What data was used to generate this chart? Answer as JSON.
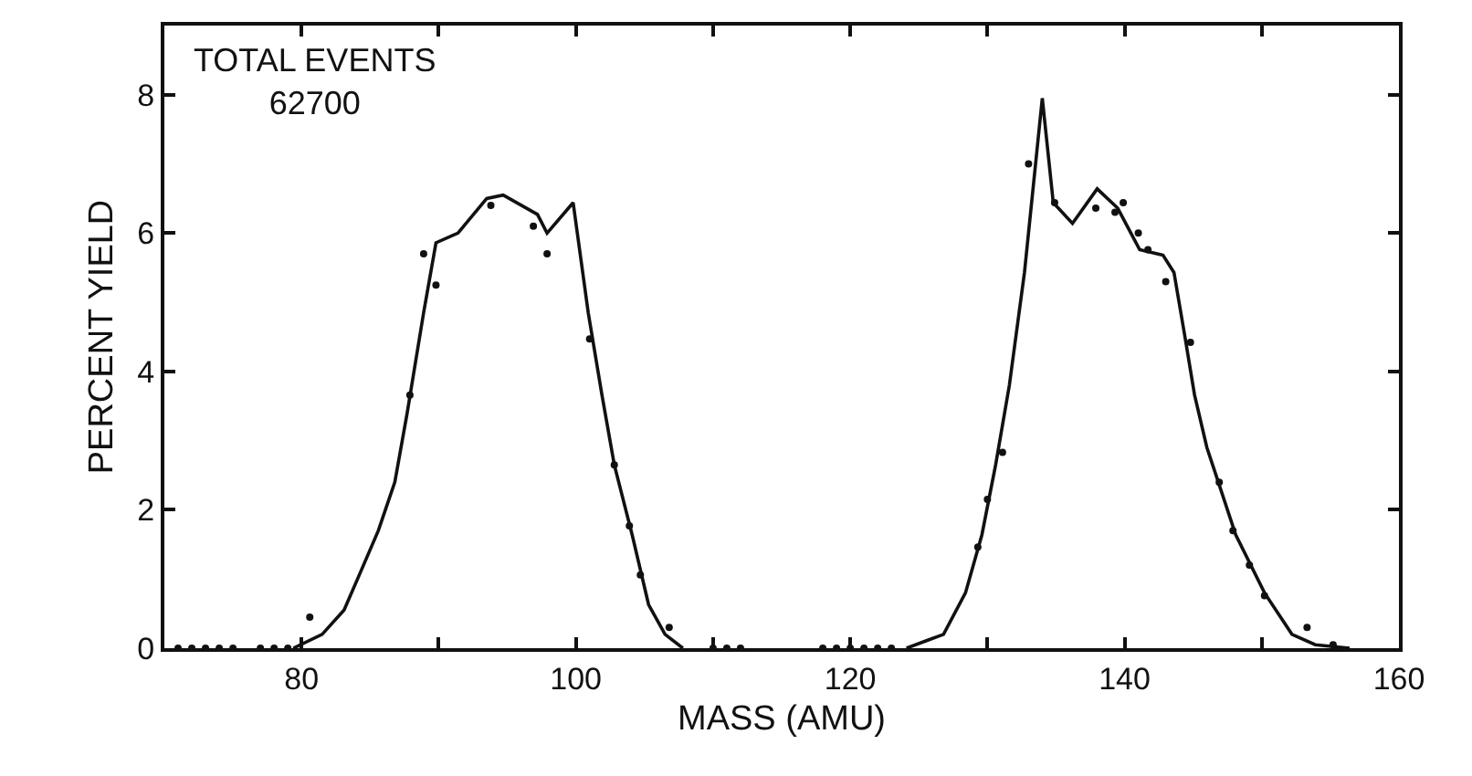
{
  "chart_data": {
    "type": "line",
    "xlabel": "MASS (AMU)",
    "ylabel": "PERCENT YIELD",
    "annotations": [
      "TOTAL EVENTS\n62700"
    ],
    "xlim": [
      70,
      160
    ],
    "ylim": [
      0,
      9
    ],
    "xticks": [
      80,
      {
        "value": 90,
        "label": null
      },
      100,
      {
        "value": 110,
        "label": null
      },
      120,
      {
        "value": 130,
        "label": null
      },
      140,
      {
        "value": 150,
        "label": null
      },
      160
    ],
    "yticks": [
      0,
      2,
      4,
      6,
      8
    ],
    "grid": false,
    "series": [
      {
        "marker": "none",
        "line_style": "solid",
        "color": "#111111",
        "x": [
          79.4,
          81.5,
          83.1,
          84.3,
          85.6,
          86.8,
          87.7,
          88.9,
          89.8,
          91.4,
          93.5,
          94.7,
          97.2,
          97.9,
          99.8,
          100.9,
          101.9,
          102.8,
          104.1,
          105.3,
          106.5,
          107.8,
          116,
          124.1,
          126.8,
          128.4,
          129.6,
          130.6,
          131.6,
          132.7,
          134.0,
          134.8,
          136.2,
          138.0,
          139.5,
          141.1,
          142.8,
          143.6,
          144.4,
          145.1,
          146.0,
          148.1,
          150.2,
          152.2,
          153.9,
          156.4
        ],
        "values": [
          0,
          0.2,
          0.55,
          1.1,
          1.7,
          2.4,
          3.4,
          4.85,
          5.86,
          6.0,
          6.5,
          6.55,
          6.27,
          6.0,
          6.44,
          4.85,
          3.66,
          2.65,
          1.64,
          0.63,
          0.2,
          0,
          null,
          0,
          0.2,
          0.8,
          1.64,
          2.65,
          3.8,
          5.43,
          7.95,
          6.44,
          6.14,
          6.64,
          6.36,
          5.76,
          5.68,
          5.43,
          4.5,
          3.66,
          2.9,
          1.64,
          0.8,
          0.2,
          0.05,
          0
        ]
      },
      {
        "type": "scatter",
        "marker": "circle",
        "color": "#111111",
        "x": [
          71,
          72,
          73,
          74,
          75,
          77,
          78,
          79,
          80.6,
          87.9,
          88.9,
          89.8,
          93.8,
          96.9,
          97.9,
          101,
          102.8,
          103.9,
          104.7,
          106.8,
          110,
          111,
          112,
          118,
          119,
          120,
          121,
          122,
          123,
          129.3,
          130,
          131.1,
          133,
          134.9,
          137.9,
          139.3,
          139.9,
          141,
          141.7,
          143,
          144.8,
          146.9,
          147.9,
          149.1,
          150.2,
          153.3,
          155.2
        ],
        "values": [
          0,
          0,
          0,
          0,
          0,
          0,
          0,
          0,
          0.45,
          3.66,
          5.7,
          5.25,
          6.4,
          6.1,
          5.7,
          4.47,
          2.65,
          1.77,
          1.06,
          0.3,
          0,
          0,
          0,
          0,
          0,
          0,
          0,
          0,
          0,
          1.46,
          2.15,
          2.83,
          7.0,
          6.44,
          6.36,
          6.3,
          6.44,
          6.0,
          5.76,
          5.3,
          4.42,
          2.4,
          1.7,
          1.2,
          0.76,
          0.3,
          0.05
        ]
      }
    ]
  }
}
